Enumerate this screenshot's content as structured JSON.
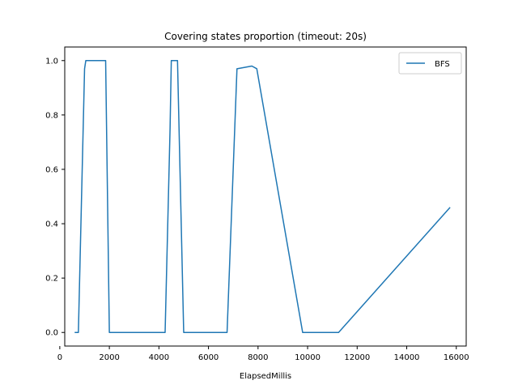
{
  "chart_data": {
    "type": "line",
    "title": "Covering states proportion (timeout: 20s)",
    "xlabel": "ElapsedMillis",
    "ylabel": "",
    "xlim": [
      200,
      16400
    ],
    "ylim": [
      -0.05,
      1.05
    ],
    "xticks": [
      0,
      2000,
      4000,
      6000,
      8000,
      10000,
      12000,
      14000,
      16000
    ],
    "yticks": [
      0.0,
      0.2,
      0.4,
      0.6,
      0.8,
      1.0
    ],
    "xtick_labels": [
      "0",
      "2000",
      "4000",
      "6000",
      "8000",
      "10000",
      "12000",
      "14000",
      "16000"
    ],
    "ytick_labels": [
      "0.0",
      "0.2",
      "0.4",
      "0.6",
      "0.8",
      "1.0"
    ],
    "grid": false,
    "legend_position": "top-right",
    "series": [
      {
        "name": "BFS",
        "color": "#1f77b4",
        "x": [
          600,
          750,
          1000,
          1050,
          1850,
          2000,
          4250,
          4450,
          4500,
          4750,
          5000,
          6750,
          7150,
          7750,
          7950,
          9800,
          11250,
          15750
        ],
        "y": [
          0.0,
          0.0,
          0.97,
          1.0,
          1.0,
          0.0,
          0.0,
          0.75,
          1.0,
          1.0,
          0.0,
          0.0,
          0.97,
          0.98,
          0.97,
          0.0,
          0.0,
          0.46
        ]
      }
    ]
  }
}
